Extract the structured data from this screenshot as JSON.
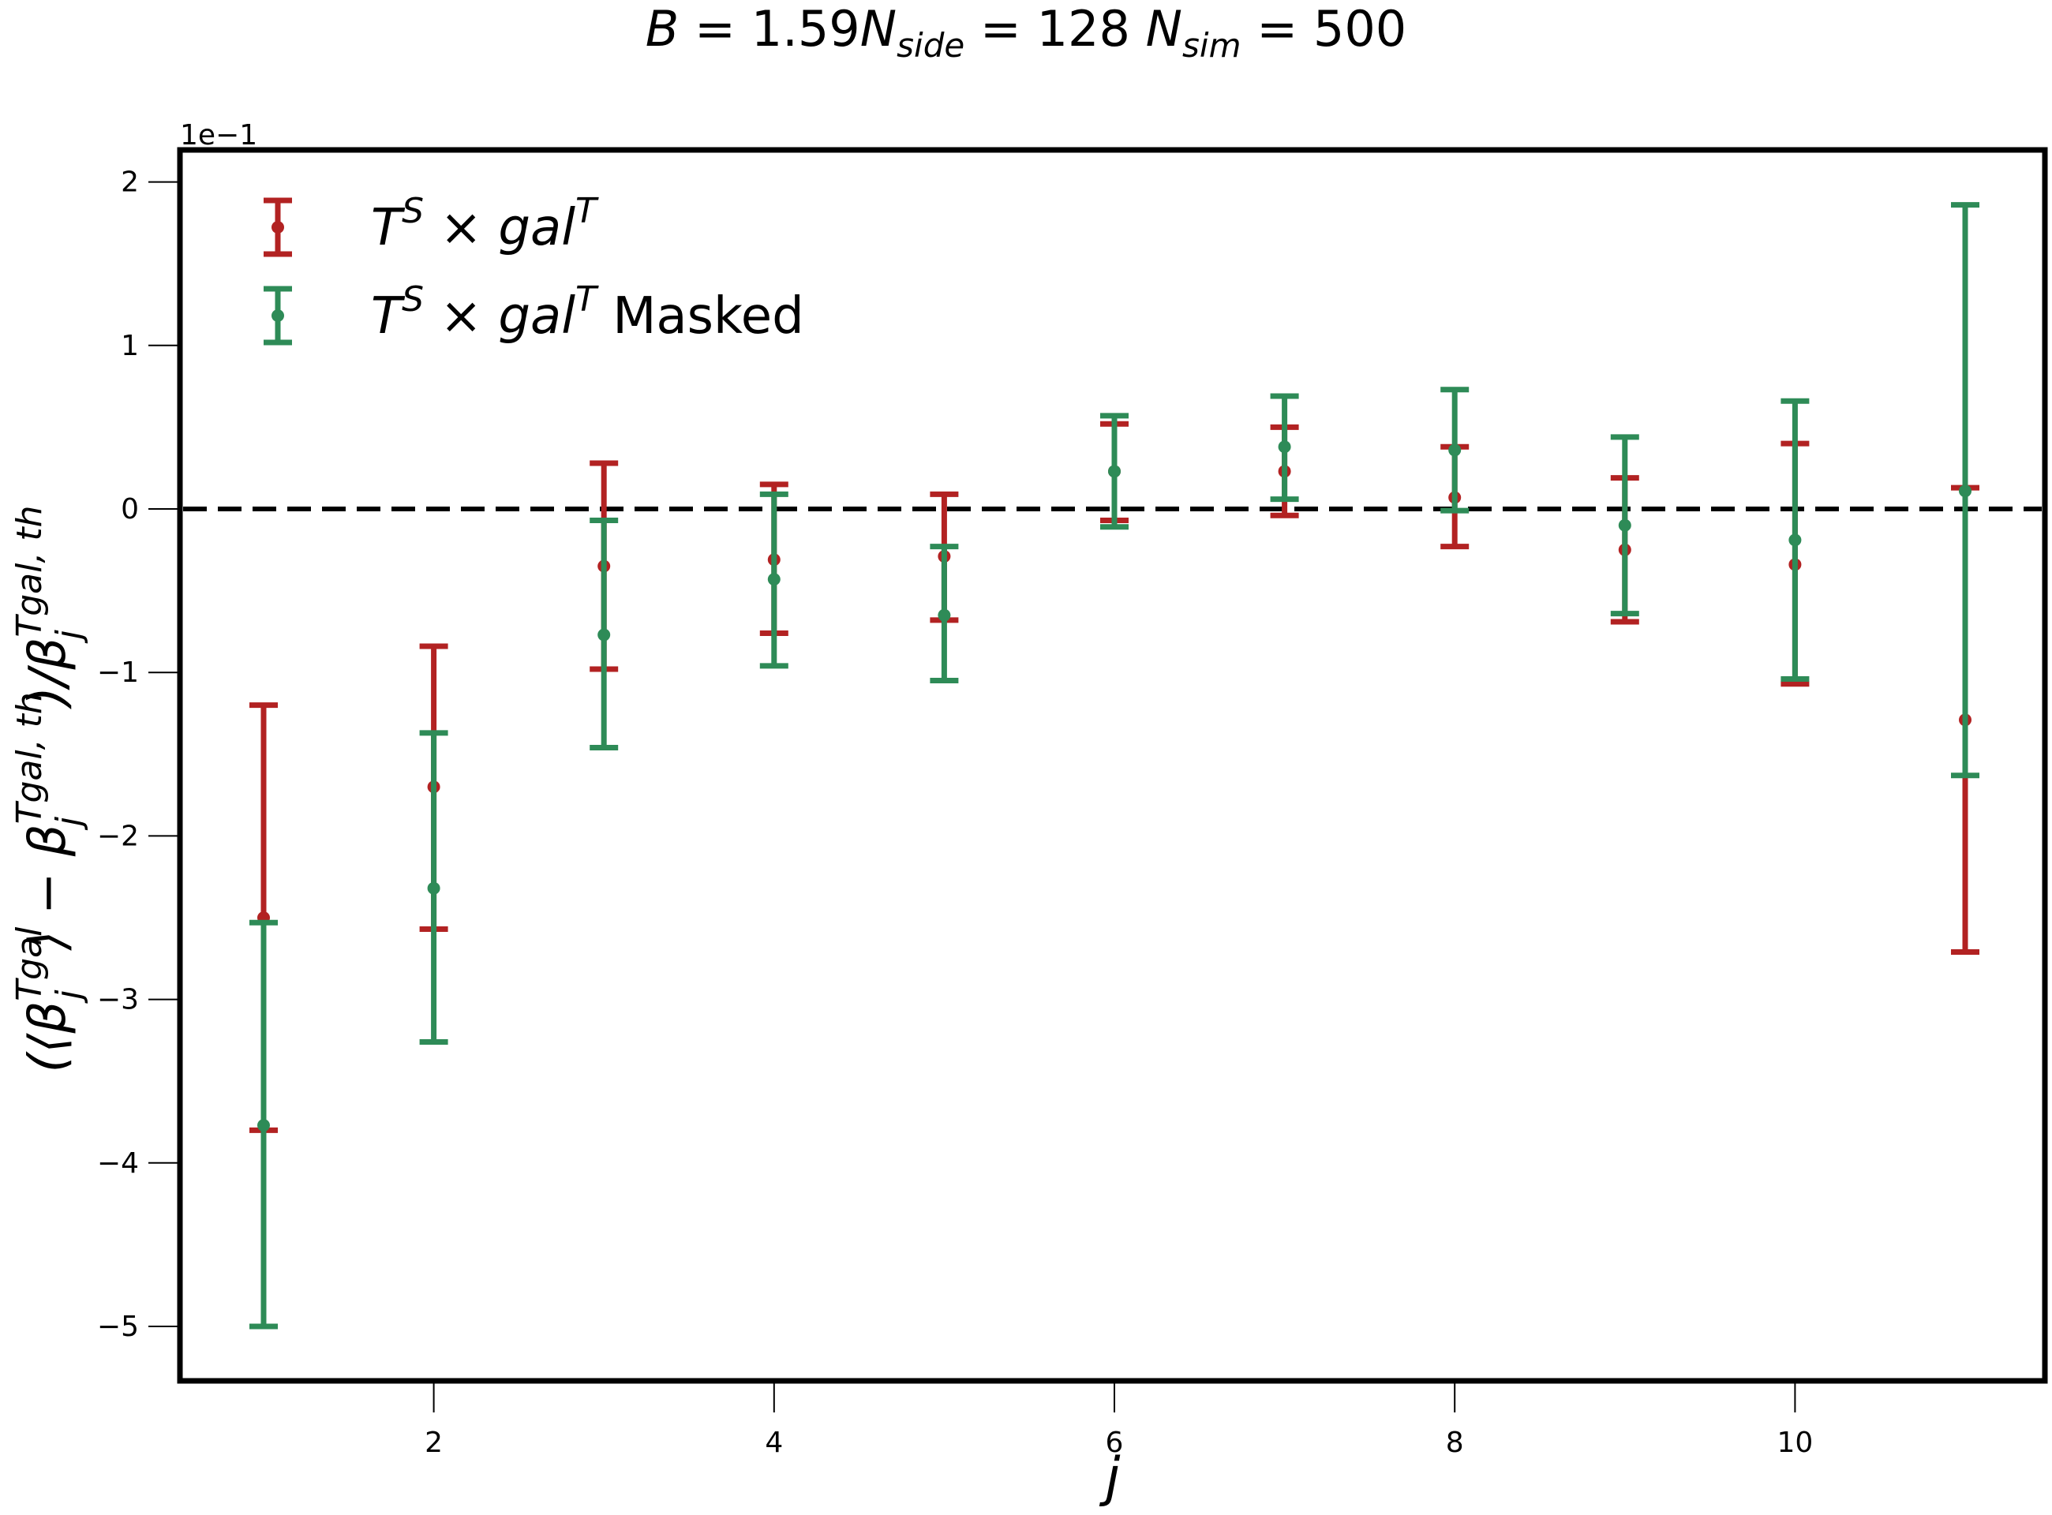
{
  "chart_data": {
    "type": "scatter",
    "title": "B = 1.59N_side = 128 N_sim = 500",
    "title_parts": {
      "b_label": "B",
      "b_value": "1.59",
      "nside_label": "N",
      "nside_sub": "side",
      "nside_value": "128",
      "nsim_label": "N",
      "nsim_sub": "sim",
      "nsim_value": "500"
    },
    "xlabel": "j",
    "ylabel": "(⟨β_j^{Tgal}⟩ − β_j^{Tgal, th})/β_j^{Tgal, th}",
    "y_offset_label": "1e−1",
    "xlim": [
      0.5,
      11.5
    ],
    "ylim": [
      -5.35,
      2.2
    ],
    "x_ticks": [
      2,
      4,
      6,
      8,
      10
    ],
    "y_ticks": [
      -5,
      -4,
      -3,
      -2,
      -1,
      0,
      1,
      2
    ],
    "y_tick_labels": [
      "−5",
      "−4",
      "−3",
      "−2",
      "−1",
      "0",
      "1",
      "2"
    ],
    "x_tick_labels": [
      "2",
      "4",
      "6",
      "8",
      "10"
    ],
    "reference_line": {
      "y": 0,
      "style": "dashed",
      "color": "#000000"
    },
    "legend_position": "top-left",
    "grid": false,
    "series": [
      {
        "name": "T^S × gal^T",
        "legend_parts": [
          "T",
          "S",
          " × ",
          "gal",
          "T",
          ""
        ],
        "color": "#b22222",
        "x": [
          1,
          2,
          3,
          4,
          5,
          6,
          7,
          8,
          9,
          10,
          11
        ],
        "y": [
          -2.5,
          -1.7,
          -0.35,
          -0.31,
          -0.29,
          0.23,
          0.23,
          0.07,
          -0.25,
          -0.34,
          -1.29
        ],
        "yerr_low": [
          -3.8,
          -2.57,
          -0.98,
          -0.76,
          -0.68,
          -0.07,
          -0.04,
          -0.23,
          -0.69,
          -1.07,
          -2.71
        ],
        "yerr_high": [
          -1.2,
          -0.84,
          0.28,
          0.15,
          0.09,
          0.52,
          0.5,
          0.38,
          0.19,
          0.4,
          0.13
        ]
      },
      {
        "name": "T^S × gal^T Masked",
        "legend_parts": [
          "T",
          "S",
          " × ",
          "gal",
          "T",
          " Masked"
        ],
        "color": "#2e8b57",
        "x": [
          1,
          2,
          3,
          4,
          5,
          6,
          7,
          8,
          9,
          10,
          11
        ],
        "y": [
          -3.77,
          -2.32,
          -0.77,
          -0.43,
          -0.65,
          0.23,
          0.38,
          0.36,
          -0.1,
          -0.19,
          0.11
        ],
        "yerr_low": [
          -5.0,
          -3.26,
          -1.46,
          -0.96,
          -1.05,
          -0.11,
          0.06,
          -0.01,
          -0.64,
          -1.04,
          -1.63
        ],
        "yerr_high": [
          -2.53,
          -1.37,
          -0.07,
          0.09,
          -0.23,
          0.57,
          0.69,
          0.73,
          0.44,
          0.66,
          1.86
        ]
      }
    ]
  }
}
